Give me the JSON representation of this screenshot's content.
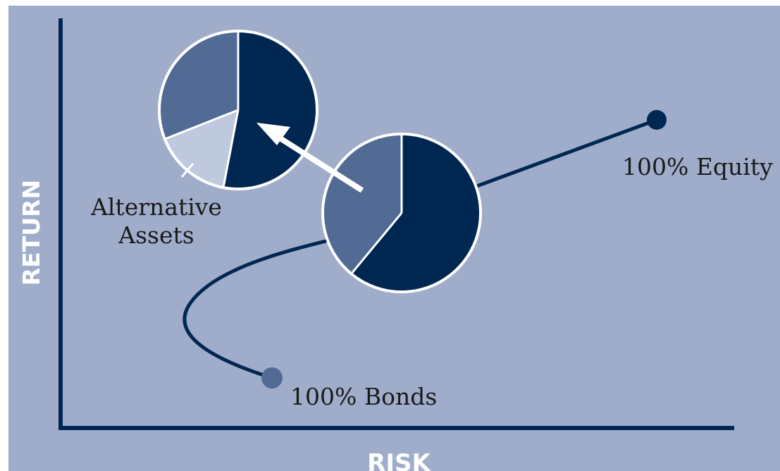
{
  "chart_data": {
    "type": "diagram",
    "title": "",
    "xlabel": "RISK",
    "ylabel": "RETURN",
    "endpoints": {
      "equity_label": "100% Equity",
      "bonds_label": "100% Bonds"
    },
    "callout_lines": [
      "Alternative",
      "Assets"
    ],
    "pies": [
      {
        "name": "",
        "slices": [
          {
            "name": "",
            "share": 0.39,
            "color": "#526b94"
          },
          {
            "name": "",
            "share": 0.61,
            "color": "#002652"
          }
        ]
      },
      {
        "name": "",
        "slices": [
          {
            "name": "",
            "share": 0.31,
            "color": "#526b94"
          },
          {
            "name": "Alternative Assets",
            "share": 0.16,
            "color": "#bfc9dd"
          },
          {
            "name": "",
            "share": 0.53,
            "color": "#002652"
          }
        ]
      }
    ]
  },
  "colors": {
    "frame_background": "#ffffff",
    "plot_background": "#9fadca",
    "axis_and_curve": "#002652",
    "bond_point": "#526b94",
    "text": "#1a1a1a",
    "axis_label_text": "#ffffff",
    "arrow": "#ffffff"
  }
}
